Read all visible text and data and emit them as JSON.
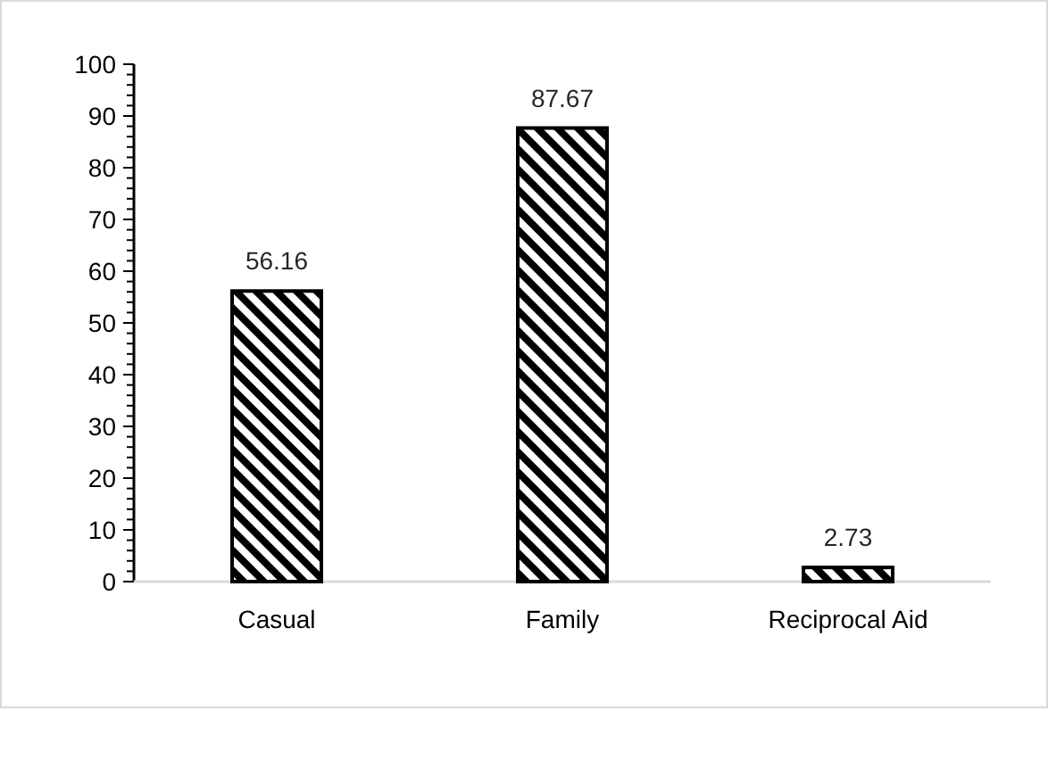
{
  "chart_data": {
    "type": "bar",
    "categories": [
      "Casual",
      "Family",
      "Reciprocal Aid"
    ],
    "values": [
      56.16,
      87.67,
      2.73
    ],
    "color": "#000000",
    "data_labels": true,
    "grid": false,
    "ylim": [
      0,
      100
    ],
    "yticks": [
      0,
      {
        "value": 2,
        "label": null
      },
      {
        "value": 4,
        "label": null
      },
      {
        "value": 6,
        "label": null
      },
      {
        "value": 8,
        "label": null
      },
      10,
      {
        "value": 12,
        "label": null
      },
      {
        "value": 14,
        "label": null
      },
      {
        "value": 16,
        "label": null
      },
      {
        "value": 18,
        "label": null
      },
      20,
      {
        "value": 22,
        "label": null
      },
      {
        "value": 24,
        "label": null
      },
      {
        "value": 26,
        "label": null
      },
      {
        "value": 28,
        "label": null
      },
      30,
      {
        "value": 32,
        "label": null
      },
      {
        "value": 34,
        "label": null
      },
      {
        "value": 36,
        "label": null
      },
      {
        "value": 38,
        "label": null
      },
      40,
      {
        "value": 42,
        "label": null
      },
      {
        "value": 44,
        "label": null
      },
      {
        "value": 46,
        "label": null
      },
      {
        "value": 48,
        "label": null
      },
      50,
      {
        "value": 52,
        "label": null
      },
      {
        "value": 54,
        "label": null
      },
      {
        "value": 56,
        "label": null
      },
      {
        "value": 58,
        "label": null
      },
      60,
      {
        "value": 62,
        "label": null
      },
      {
        "value": 64,
        "label": null
      },
      {
        "value": 66,
        "label": null
      },
      {
        "value": 68,
        "label": null
      },
      70,
      {
        "value": 72,
        "label": null
      },
      {
        "value": 74,
        "label": null
      },
      {
        "value": 76,
        "label": null
      },
      {
        "value": 78,
        "label": null
      },
      80,
      {
        "value": 82,
        "label": null
      },
      {
        "value": 84,
        "label": null
      },
      {
        "value": 86,
        "label": null
      },
      {
        "value": 88,
        "label": null
      },
      90,
      {
        "value": 92,
        "label": null
      },
      {
        "value": 94,
        "label": null
      },
      {
        "value": 96,
        "label": null
      },
      {
        "value": 98,
        "label": null
      },
      100
    ]
  }
}
